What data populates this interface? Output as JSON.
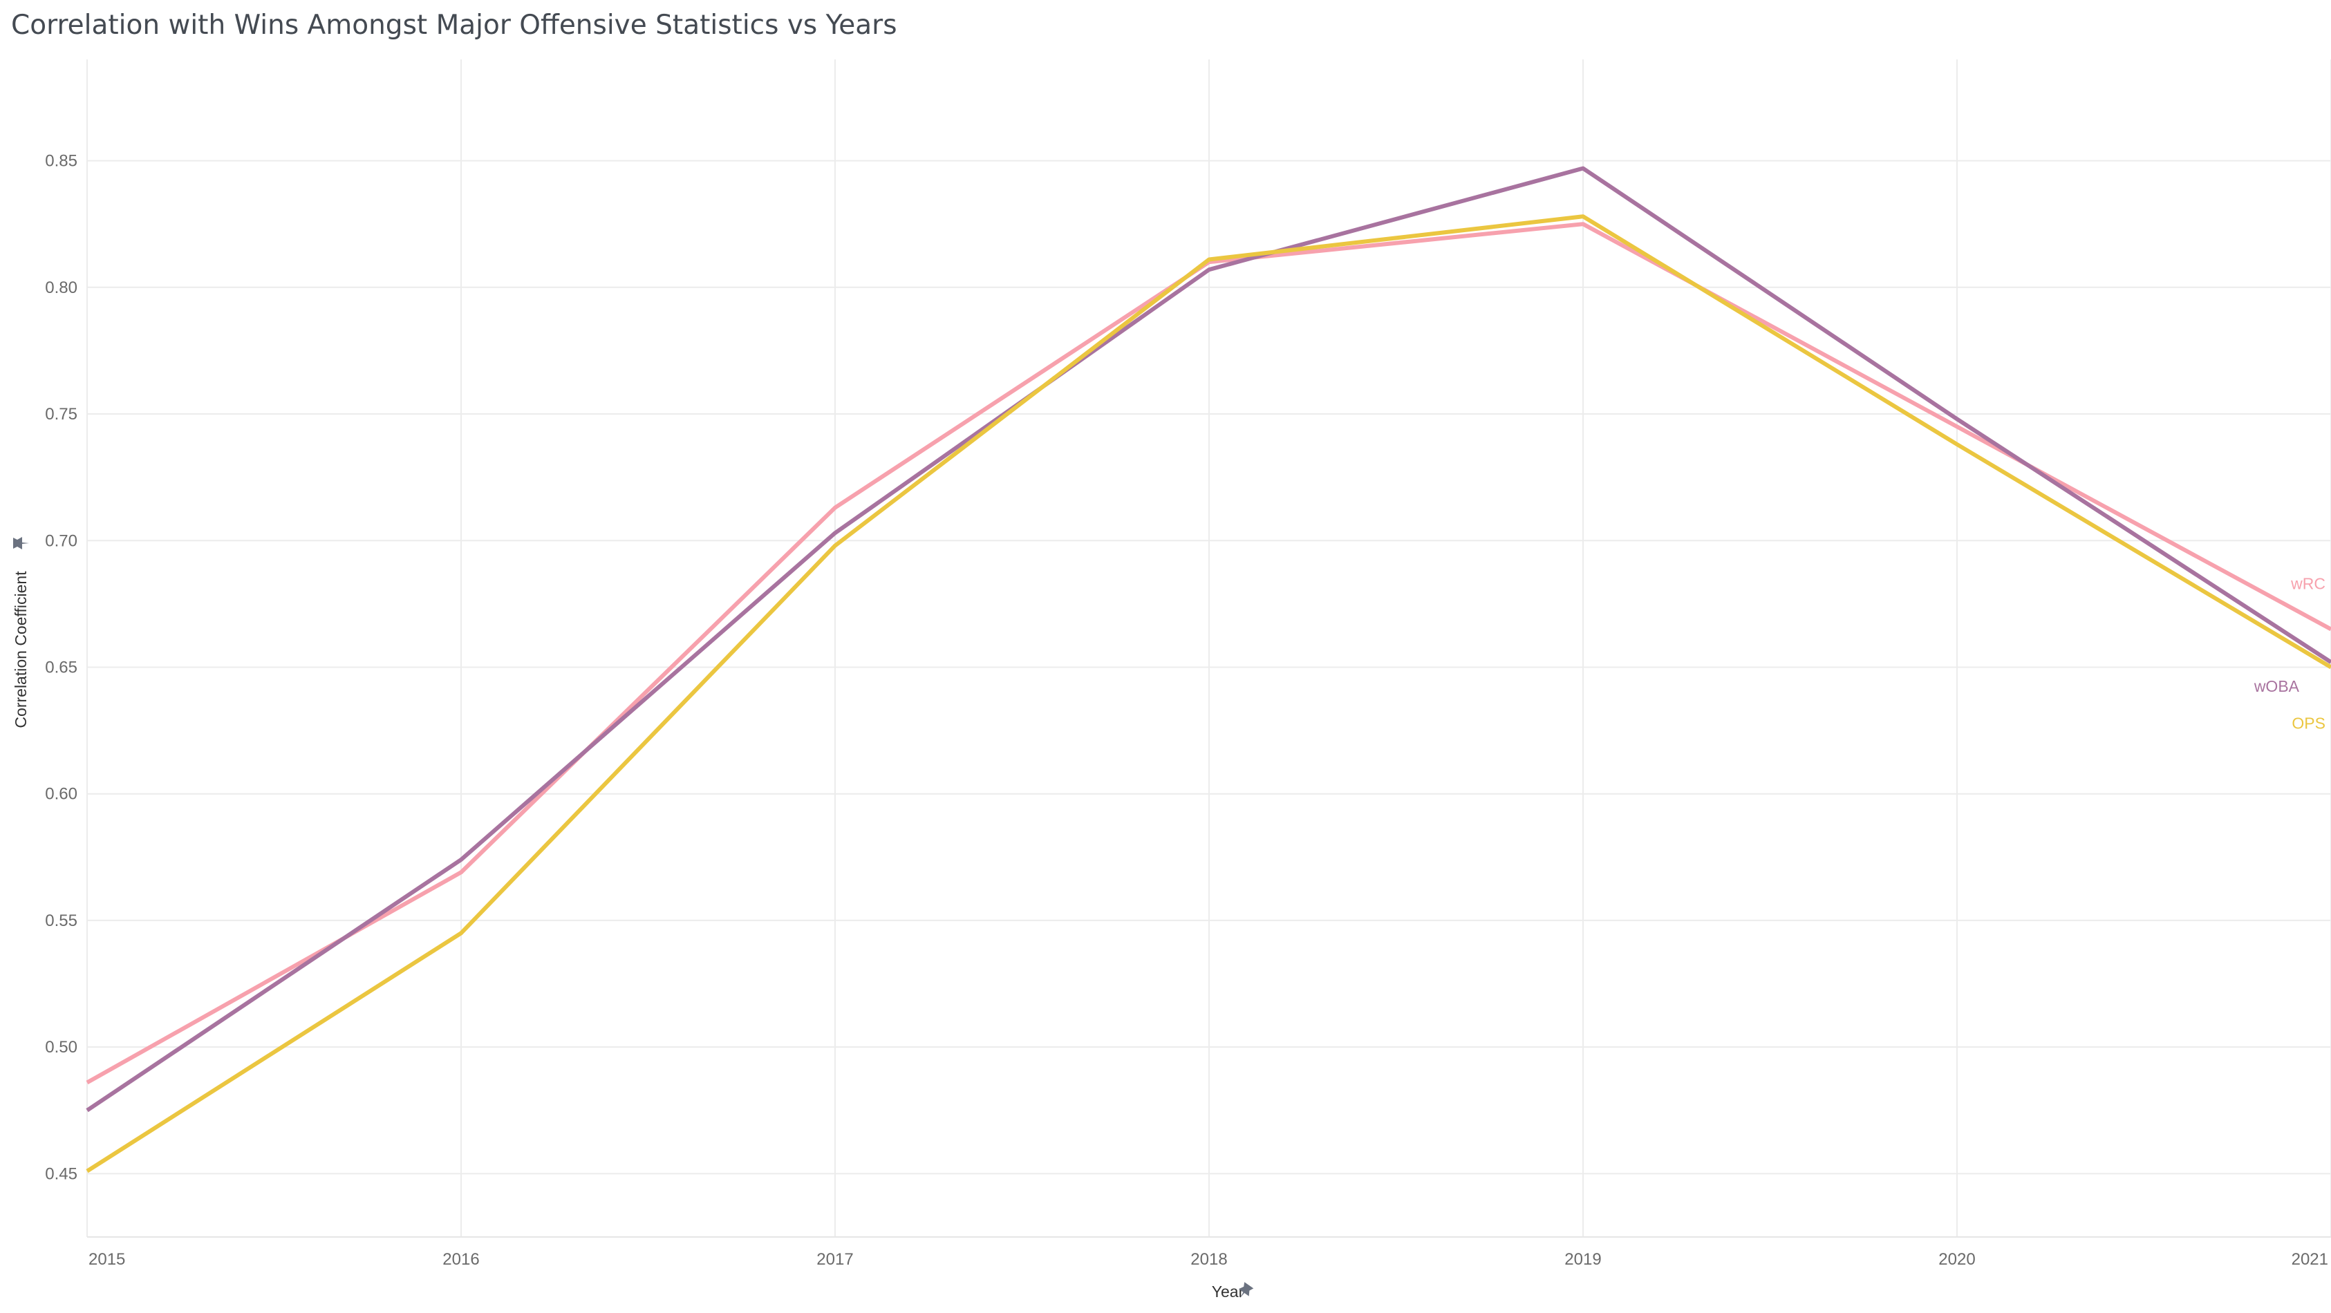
{
  "chart_data": {
    "type": "line",
    "title": "Correlation with Wins Amongst Major Offensive Statistics vs Years",
    "xlabel": "Year",
    "ylabel": "Correlation Coefficient",
    "x": [
      2015,
      2016,
      2017,
      2018,
      2019,
      2020,
      2021
    ],
    "xlim": [
      2015,
      2021
    ],
    "ylim": [
      0.425,
      0.89
    ],
    "y_ticks": [
      0.45,
      0.5,
      0.55,
      0.6,
      0.65,
      0.7,
      0.75,
      0.8,
      0.85
    ],
    "y_tick_labels": [
      "0.45",
      "0.50",
      "0.55",
      "0.60",
      "0.65",
      "0.70",
      "0.75",
      "0.80",
      "0.85"
    ],
    "x_tick_labels": [
      "2015",
      "2016",
      "2017",
      "2018",
      "2019",
      "2020",
      "2021"
    ],
    "grid": true,
    "legend": "inline-right",
    "series": [
      {
        "name": "wRC",
        "color": "#f7a1ad",
        "values": [
          0.486,
          0.569,
          0.713,
          0.81,
          0.825,
          0.745,
          0.665
        ]
      },
      {
        "name": "wOBA",
        "color": "#a8739f",
        "values": [
          0.475,
          0.574,
          0.703,
          0.807,
          0.847,
          0.748,
          0.652
        ]
      },
      {
        "name": "OPS",
        "color": "#ebc640",
        "values": [
          0.451,
          0.545,
          0.698,
          0.811,
          0.828,
          0.738,
          0.65
        ]
      }
    ],
    "axis_icons": {
      "ylabel_icon": "pin-icon",
      "xlabel_icon": "pin-icon"
    }
  }
}
